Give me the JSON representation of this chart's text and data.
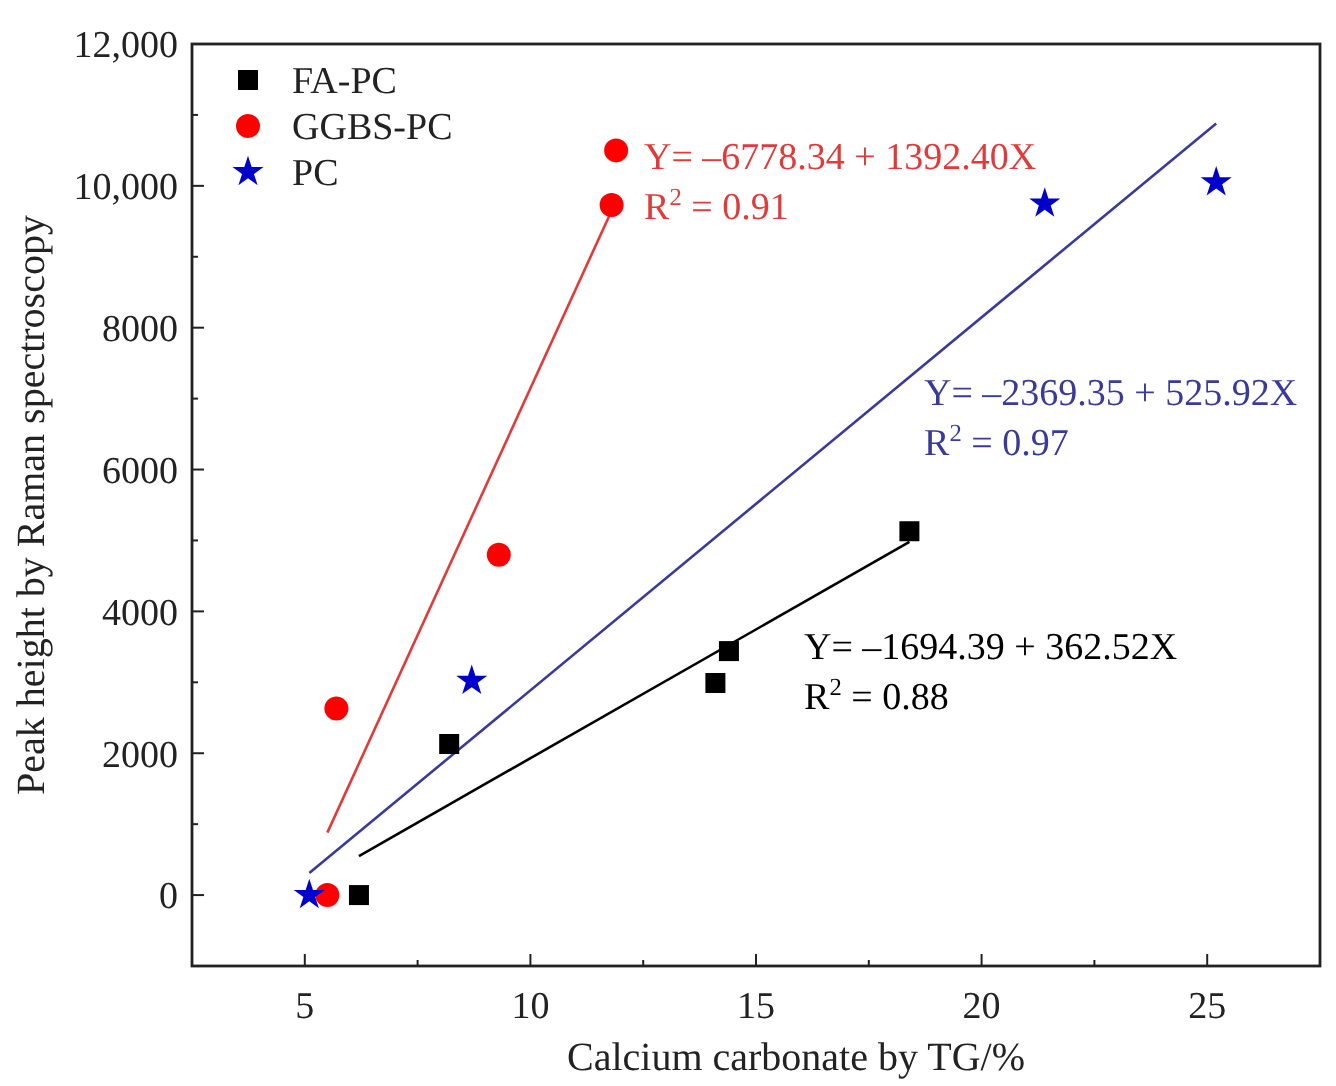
{
  "chart_data": {
    "type": "scatter",
    "xlabel": "Calcium carbonate by TG/%",
    "ylabel": "Peak height by Raman spectroscopy",
    "xlim": [
      2.5,
      27.5
    ],
    "ylim": [
      -1000,
      12000
    ],
    "xticks": [
      5,
      {
        "value": 7.5,
        "label": null
      },
      10,
      {
        "value": 12.5,
        "label": null
      },
      15,
      {
        "value": 17.5,
        "label": null
      },
      20,
      {
        "value": 22.5,
        "label": null
      },
      25
    ],
    "yticks": [
      0,
      {
        "value": 1000,
        "label": null
      },
      2000,
      {
        "value": 3000,
        "label": null
      },
      4000,
      {
        "value": 5000,
        "label": null
      },
      6000,
      {
        "value": 7000,
        "label": null
      },
      8000,
      {
        "value": 9000,
        "label": null
      },
      {
        "value": 10000,
        "label": "10,000"
      },
      {
        "value": 11000,
        "label": null
      },
      {
        "value": 12000,
        "label": "12,000"
      }
    ],
    "legend": "top left",
    "grid": false,
    "series": [
      {
        "name": "FA-PC",
        "marker": "square",
        "color": "#000000",
        "x": [
          6.2,
          8.2,
          14.1,
          14.4,
          18.4
        ],
        "values": [
          0,
          2130,
          2990,
          3440,
          5130
        ]
      },
      {
        "name": "GGBS-PC",
        "marker": "circle",
        "color": "#ff0000",
        "x": [
          5.5,
          5.7,
          9.3,
          11.8,
          11.9
        ],
        "values": [
          0,
          2630,
          4800,
          9730,
          10500
        ]
      },
      {
        "name": "PC",
        "marker": "star",
        "color": "#0000cc",
        "x": [
          5.1,
          8.7,
          21.4,
          25.2
        ],
        "values": [
          0,
          3020,
          9750,
          10050
        ]
      },
      {
        "type": "line",
        "marker": "none",
        "color": "#e03a3a",
        "x": [
          5.5,
          11.8
        ],
        "values": [
          880,
          9650
        ]
      },
      {
        "type": "line",
        "marker": "none",
        "color": "#3a3a9a",
        "x": [
          5.1,
          25.2
        ],
        "values": [
          310,
          10880
        ]
      },
      {
        "type": "line",
        "marker": "none",
        "color": "#000000",
        "x": [
          6.2,
          18.4
        ],
        "values": [
          550,
          4980
        ]
      }
    ],
    "annotations": [
      "Y= –6778.34 + 1392.40X",
      "R$^{2}$ = 0.91",
      "Y= –2369.35 + 525.92X",
      "R$^{2}$ = 0.97",
      "Y= –1694.39 + 362.52X",
      "R$^{2}$ = 0.88"
    ]
  }
}
